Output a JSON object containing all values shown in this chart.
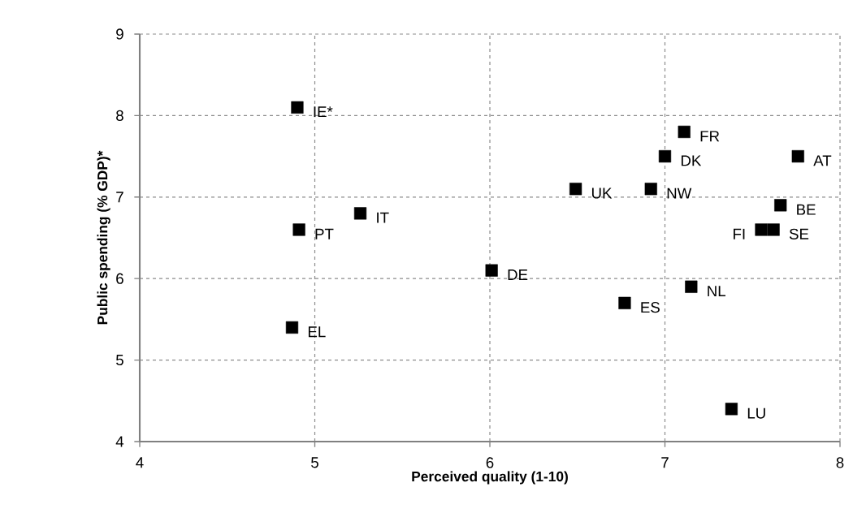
{
  "chart_data": {
    "type": "scatter",
    "xlabel": "Perceived quality  (1-10)",
    "ylabel": "Public spending (% GDP)*",
    "x": [
      4.9,
      4.91,
      5.26,
      4.87,
      6.01,
      7.11,
      7.0,
      7.76,
      6.49,
      6.92,
      7.66,
      7.55,
      7.62,
      7.15,
      6.77,
      7.38
    ],
    "values": [
      8.1,
      6.6,
      6.8,
      5.4,
      6.1,
      7.8,
      7.5,
      7.5,
      7.1,
      7.1,
      6.9,
      6.6,
      6.6,
      5.9,
      5.7,
      4.4
    ],
    "color": "#000000",
    "marker": "square",
    "xlim": [
      4,
      8
    ],
    "ylim": [
      4,
      9
    ],
    "xticks": [
      4,
      5,
      6,
      7,
      8
    ],
    "yticks": [
      4,
      5,
      6,
      7,
      8,
      9
    ],
    "grid": true,
    "annotations": [
      {
        "text": "IE*",
        "x": 4.9,
        "y": 8.1
      },
      {
        "text": "PT",
        "x": 4.91,
        "y": 6.6
      },
      {
        "text": "IT",
        "x": 5.26,
        "y": 6.8
      },
      {
        "text": "EL",
        "x": 4.87,
        "y": 5.4
      },
      {
        "text": "DE",
        "x": 6.01,
        "y": 6.1
      },
      {
        "text": "FR",
        "x": 7.11,
        "y": 7.8
      },
      {
        "text": "DK",
        "x": 7.0,
        "y": 7.5
      },
      {
        "text": "AT",
        "x": 7.76,
        "y": 7.5
      },
      {
        "text": "UK",
        "x": 6.49,
        "y": 7.1
      },
      {
        "text": "NW",
        "x": 6.92,
        "y": 7.1
      },
      {
        "text": "BE",
        "x": 7.66,
        "y": 6.9
      },
      {
        "text": "FI",
        "x": 7.55,
        "y": 6.6
      },
      {
        "text": "SE",
        "x": 7.62,
        "y": 6.6
      },
      {
        "text": "NL",
        "x": 7.15,
        "y": 5.9
      },
      {
        "text": "ES",
        "x": 6.77,
        "y": 5.7
      },
      {
        "text": "LU",
        "x": 7.38,
        "y": 4.4
      }
    ]
  }
}
